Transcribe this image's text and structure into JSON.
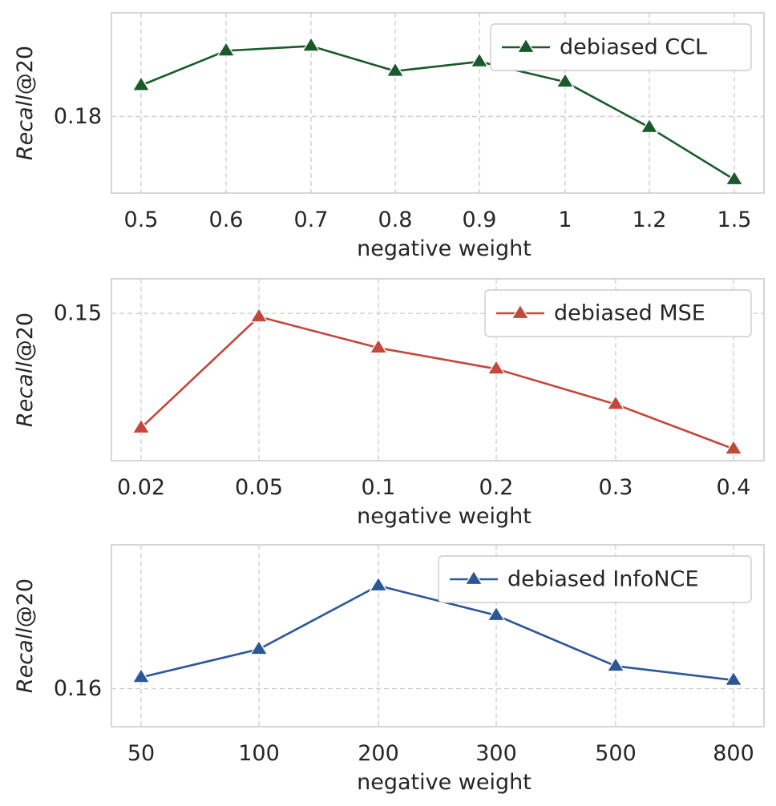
{
  "chart_data": [
    {
      "type": "line",
      "categories": [
        "0.5",
        "0.6",
        "0.7",
        "0.8",
        "0.9",
        "1",
        "1.2",
        "1.5"
      ],
      "series": [
        {
          "name": "debiased CCL",
          "color": "#1a5a2a",
          "marker": "triangle",
          "values": [
            0.1846,
            0.1897,
            0.1904,
            0.1867,
            0.1881,
            0.1851,
            0.1784,
            0.1707
          ]
        }
      ],
      "xlabel": "negative weight",
      "ylabel": "Recall@20",
      "ylim": [
        0.1687,
        0.1953
      ],
      "yticks": [
        0.18
      ],
      "ytick_labels": [
        "0.18"
      ],
      "grid": true,
      "legend": "upper right"
    },
    {
      "type": "line",
      "categories": [
        "0.02",
        "0.05",
        "0.1",
        "0.2",
        "0.3",
        "0.4"
      ],
      "series": [
        {
          "name": "debiased MSE",
          "color": "#c4473a",
          "marker": "triangle",
          "values": [
            0.1364,
            0.1496,
            0.1459,
            0.1434,
            0.1392,
            0.1339
          ]
        }
      ],
      "xlabel": "negative weight",
      "ylabel": "Recall@20",
      "ylim": [
        0.1325,
        0.1541
      ],
      "yticks": [
        0.15
      ],
      "ytick_labels": [
        "0.15"
      ],
      "grid": true,
      "legend": "upper right"
    },
    {
      "type": "line",
      "categories": [
        "50",
        "100",
        "200",
        "300",
        "500",
        "800"
      ],
      "series": [
        {
          "name": "debiased InfoNCE",
          "color": "#2c5797",
          "marker": "triangle",
          "values": [
            0.1608,
            0.1628,
            0.1673,
            0.1652,
            0.1616,
            0.1606
          ]
        }
      ],
      "xlabel": "negative weight",
      "ylabel": "Recall@20",
      "ylim": [
        0.1573,
        0.1702
      ],
      "yticks": [
        0.16
      ],
      "ytick_labels": [
        "0.16"
      ],
      "grid": true,
      "legend": "upper right"
    }
  ]
}
